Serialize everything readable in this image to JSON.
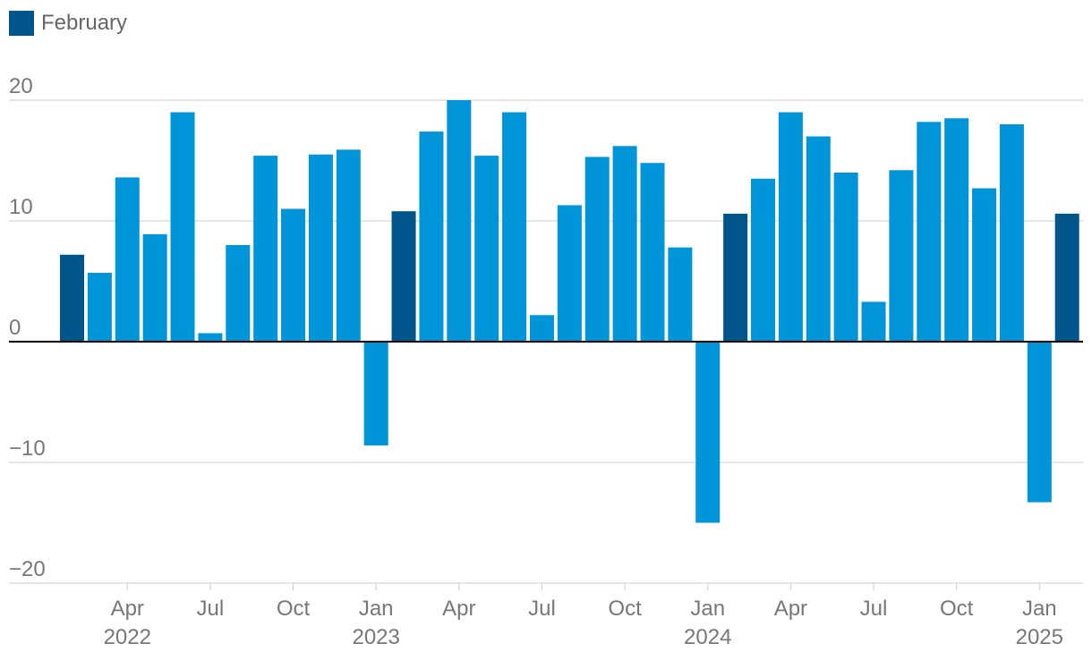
{
  "legend": {
    "label": "February"
  },
  "colors": {
    "highlight": "#00558a",
    "default": "#0094d9",
    "grid": "#cccccc",
    "axis": "#000000",
    "text": "#777777"
  },
  "chart_data": {
    "type": "bar",
    "title": "",
    "xlabel": "",
    "ylabel": "",
    "ylim": [
      -20,
      20
    ],
    "yticks": [
      20,
      10,
      0,
      -10,
      -20
    ],
    "ytick_labels": [
      "20",
      "10",
      "0",
      "−10",
      "−20"
    ],
    "highlight_series": "February",
    "categories": [
      "2022-02",
      "2022-03",
      "2022-04",
      "2022-05",
      "2022-06",
      "2022-07",
      "2022-08",
      "2022-09",
      "2022-10",
      "2022-11",
      "2022-12",
      "2023-01",
      "2023-02",
      "2023-03",
      "2023-04",
      "2023-05",
      "2023-06",
      "2023-07",
      "2023-08",
      "2023-09",
      "2023-10",
      "2023-11",
      "2023-12",
      "2024-01",
      "2024-02",
      "2024-03",
      "2024-04",
      "2024-05",
      "2024-06",
      "2024-07",
      "2024-08",
      "2024-09",
      "2024-10",
      "2024-11",
      "2024-12",
      "2025-01",
      "2025-02"
    ],
    "values": [
      7.2,
      5.7,
      13.6,
      8.9,
      19.0,
      0.7,
      8.0,
      15.4,
      11.0,
      15.5,
      15.9,
      -8.6,
      10.8,
      17.4,
      20.0,
      15.4,
      19.0,
      2.2,
      11.3,
      15.3,
      16.2,
      14.8,
      7.8,
      -15.0,
      10.6,
      13.5,
      19.0,
      17.0,
      14.0,
      3.3,
      14.2,
      18.2,
      18.5,
      12.7,
      18.0,
      -13.3,
      10.6
    ],
    "highlighted": [
      true,
      false,
      false,
      false,
      false,
      false,
      false,
      false,
      false,
      false,
      false,
      false,
      true,
      false,
      false,
      false,
      false,
      false,
      false,
      false,
      false,
      false,
      false,
      false,
      true,
      false,
      false,
      false,
      false,
      false,
      false,
      false,
      false,
      false,
      false,
      false,
      true
    ],
    "xticks": [
      {
        "index": 2,
        "month": "Apr",
        "year": "2022"
      },
      {
        "index": 5,
        "month": "Jul",
        "year": ""
      },
      {
        "index": 8,
        "month": "Oct",
        "year": ""
      },
      {
        "index": 11,
        "month": "Jan",
        "year": "2023"
      },
      {
        "index": 14,
        "month": "Apr",
        "year": ""
      },
      {
        "index": 17,
        "month": "Jul",
        "year": ""
      },
      {
        "index": 20,
        "month": "Oct",
        "year": ""
      },
      {
        "index": 23,
        "month": "Jan",
        "year": "2024"
      },
      {
        "index": 26,
        "month": "Apr",
        "year": ""
      },
      {
        "index": 29,
        "month": "Jul",
        "year": ""
      },
      {
        "index": 32,
        "month": "Oct",
        "year": ""
      },
      {
        "index": 35,
        "month": "Jan",
        "year": "2025"
      }
    ]
  }
}
